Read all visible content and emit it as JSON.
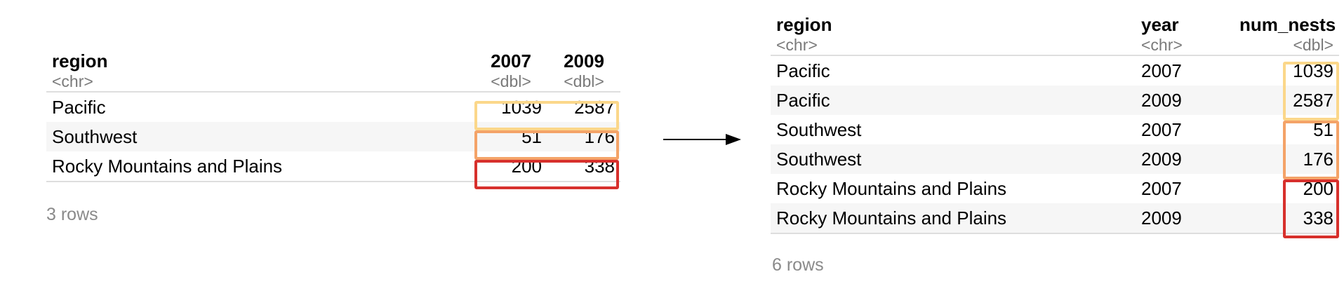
{
  "colors": {
    "yellow": "#fbd78a",
    "orange": "#f4a368",
    "red": "#d7302c"
  },
  "left_table": {
    "headers": {
      "region": "region",
      "c2007": "2007",
      "c2009": "2009"
    },
    "types": {
      "region": "<chr>",
      "c2007": "<dbl>",
      "c2009": "<dbl>"
    },
    "rows": [
      {
        "region": "Pacific",
        "c2007": "1039",
        "c2009": "2587",
        "highlight": "yellow"
      },
      {
        "region": "Southwest",
        "c2007": "51",
        "c2009": "176",
        "highlight": "orange"
      },
      {
        "region": "Rocky Mountains and Plains",
        "c2007": "200",
        "c2009": "338",
        "highlight": "red"
      }
    ],
    "caption": "3 rows"
  },
  "arrow_icon": "right-arrow-icon",
  "right_table": {
    "headers": {
      "region": "region",
      "year": "year",
      "num_nests": "num_nests"
    },
    "types": {
      "region": "<chr>",
      "year": "<chr>",
      "num_nests": "<dbl>"
    },
    "rows": [
      {
        "region": "Pacific",
        "year": "2007",
        "num_nests": "1039",
        "highlight": "yellow"
      },
      {
        "region": "Pacific",
        "year": "2009",
        "num_nests": "2587",
        "highlight": "yellow"
      },
      {
        "region": "Southwest",
        "year": "2007",
        "num_nests": "51",
        "highlight": "orange"
      },
      {
        "region": "Southwest",
        "year": "2009",
        "num_nests": "176",
        "highlight": "orange"
      },
      {
        "region": "Rocky Mountains and Plains",
        "year": "2007",
        "num_nests": "200",
        "highlight": "red"
      },
      {
        "region": "Rocky Mountains and Plains",
        "year": "2009",
        "num_nests": "338",
        "highlight": "red"
      }
    ],
    "caption": "6 rows"
  }
}
